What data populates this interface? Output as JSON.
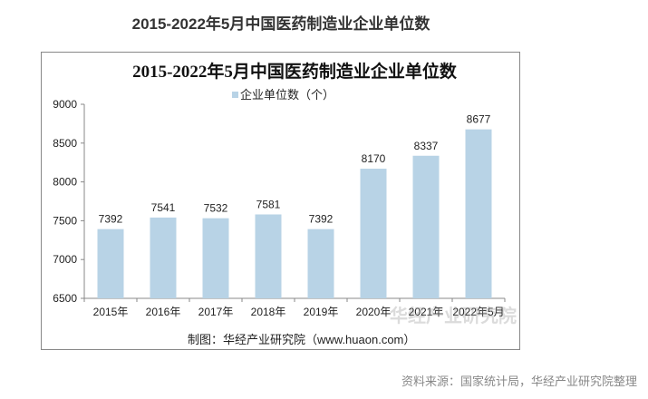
{
  "header": {
    "title": "2015-2022年5月中国医药制造业企业单位数"
  },
  "footer": {
    "made_by": "制图：华经产业研究院（www.huaon.com）",
    "source": "资料来源：国家统计局，华经产业研究院整理"
  },
  "watermark": {
    "text": "华经产业研究院",
    "url": "www.huaon.com"
  },
  "chart_data": {
    "type": "bar",
    "title": "2015-2022年5月中国医药制造业企业单位数",
    "categories": [
      "2015年",
      "2016年",
      "2017年",
      "2018年",
      "2019年",
      "2020年",
      "2021年",
      "2022年5月"
    ],
    "series": [
      {
        "name": "企业单位数（个）",
        "values": [
          7392,
          7541,
          7532,
          7581,
          7392,
          8170,
          8337,
          8677
        ],
        "color": "#b8d3e6"
      }
    ],
    "ylim": [
      6500,
      9000
    ],
    "yticks": [
      6500,
      7000,
      7500,
      8000,
      8500,
      9000
    ],
    "legend": "top",
    "grid": false
  }
}
